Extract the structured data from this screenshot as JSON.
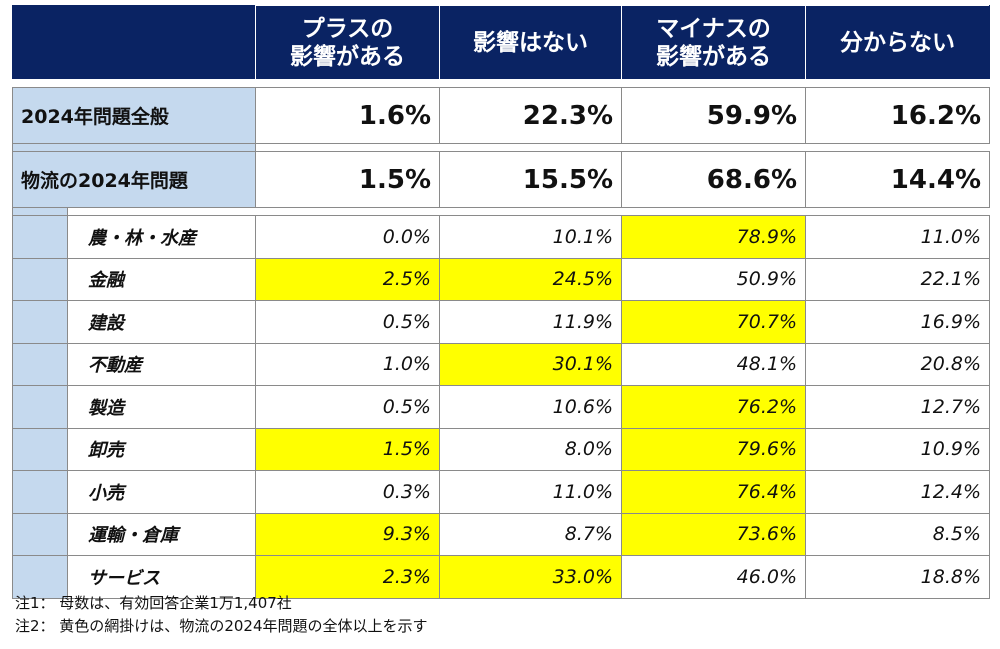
{
  "chart_data": {
    "type": "table",
    "columns": [
      "プラスの\n影響がある",
      "影響はない",
      "マイナスの\n影響がある",
      "分からない"
    ],
    "summary_rows": [
      {
        "label": "2024年問題全般",
        "values": [
          "1.6%",
          "22.3%",
          "59.9%",
          "16.2%"
        ]
      },
      {
        "label": "物流の2024年問題",
        "values": [
          "1.5%",
          "15.5%",
          "68.6%",
          "14.4%"
        ]
      }
    ],
    "rows": [
      {
        "label": "農・林・水産",
        "values": [
          "0.0%",
          "10.1%",
          "78.9%",
          "11.0%"
        ],
        "highlight": [
          false,
          false,
          true,
          false
        ]
      },
      {
        "label": "金融",
        "values": [
          "2.5%",
          "24.5%",
          "50.9%",
          "22.1%"
        ],
        "highlight": [
          true,
          true,
          false,
          false
        ]
      },
      {
        "label": "建設",
        "values": [
          "0.5%",
          "11.9%",
          "70.7%",
          "16.9%"
        ],
        "highlight": [
          false,
          false,
          true,
          false
        ]
      },
      {
        "label": "不動産",
        "values": [
          "1.0%",
          "30.1%",
          "48.1%",
          "20.8%"
        ],
        "highlight": [
          false,
          true,
          false,
          false
        ]
      },
      {
        "label": "製造",
        "values": [
          "0.5%",
          "10.6%",
          "76.2%",
          "12.7%"
        ],
        "highlight": [
          false,
          false,
          true,
          false
        ]
      },
      {
        "label": "卸売",
        "values": [
          "1.5%",
          "8.0%",
          "79.6%",
          "10.9%"
        ],
        "highlight": [
          true,
          false,
          true,
          false
        ]
      },
      {
        "label": "小売",
        "values": [
          "0.3%",
          "11.0%",
          "76.4%",
          "12.4%"
        ],
        "highlight": [
          false,
          false,
          true,
          false
        ]
      },
      {
        "label": "運輸・倉庫",
        "values": [
          "9.3%",
          "8.7%",
          "73.6%",
          "8.5%"
        ],
        "highlight": [
          true,
          false,
          true,
          false
        ]
      },
      {
        "label": "サービス",
        "values": [
          "2.3%",
          "33.0%",
          "46.0%",
          "18.8%"
        ],
        "highlight": [
          true,
          true,
          false,
          false
        ]
      }
    ],
    "notes": [
      "注1： 母数は、有効回答企業1万1,407社",
      "注2： 黄色の網掛けは、物流の2024年問題の全体以上を示す"
    ]
  },
  "colors": {
    "header_bg": "#0a2363",
    "header_text": "#ffffff",
    "label_bg": "#c5d9ee",
    "highlight": "#ffff00"
  }
}
